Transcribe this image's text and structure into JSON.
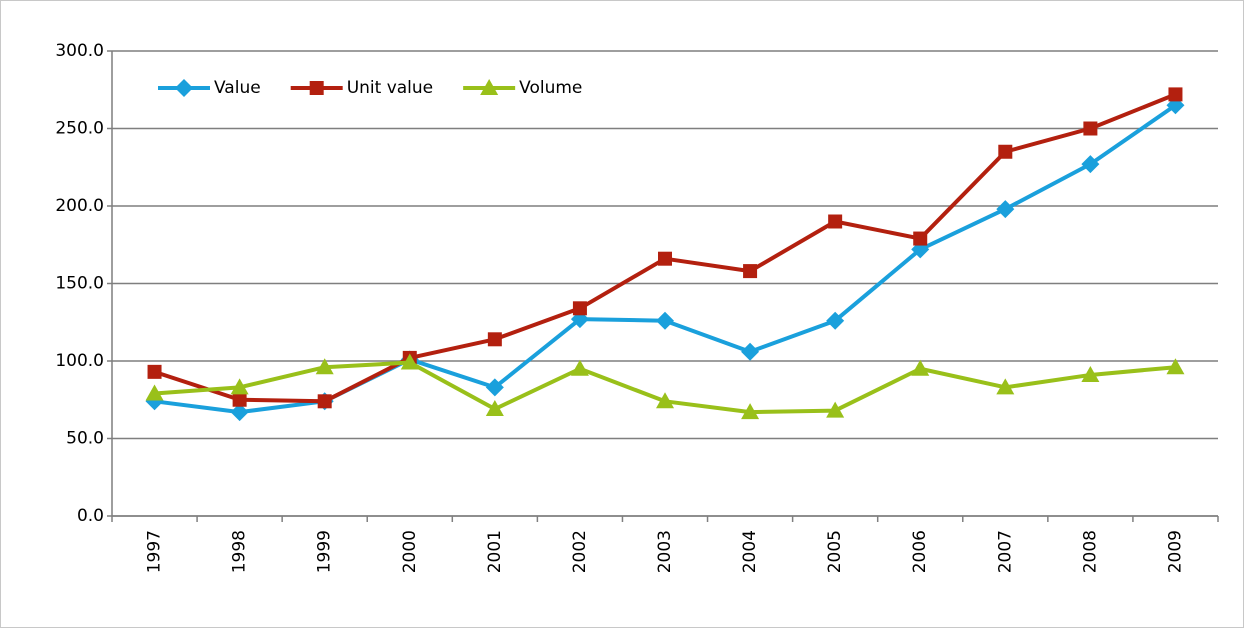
{
  "chart_data": {
    "type": "line",
    "categories": [
      "1997",
      "1998",
      "1999",
      "2000",
      "2001",
      "2002",
      "2003",
      "2004",
      "2005",
      "2006",
      "2007",
      "2008",
      "2009"
    ],
    "series": [
      {
        "name": "Value",
        "color": "#1aa0dc",
        "marker": "diamond",
        "values": [
          74,
          67,
          74,
          101,
          83,
          127,
          126,
          106,
          126,
          172,
          198,
          227,
          265
        ]
      },
      {
        "name": "Unit value",
        "color": "#b3200f",
        "marker": "square",
        "values": [
          93,
          75,
          74,
          102,
          114,
          134,
          166,
          158,
          190,
          179,
          235,
          250,
          272
        ]
      },
      {
        "name": "Volume",
        "color": "#99c01a",
        "marker": "triangle",
        "values": [
          79,
          83,
          96,
          99,
          69,
          95,
          74,
          67,
          68,
          95,
          83,
          91,
          96
        ]
      }
    ],
    "ylim": [
      0,
      300
    ],
    "yticks": [
      {
        "value": 0,
        "label": "0.0"
      },
      {
        "value": 50,
        "label": "50.0"
      },
      {
        "value": 100,
        "label": "100.0"
      },
      {
        "value": 150,
        "label": "150.0"
      },
      {
        "value": 200,
        "label": "200.0"
      },
      {
        "value": 250,
        "label": "250.0"
      },
      {
        "value": 300,
        "label": "300.0"
      }
    ],
    "grid": true,
    "legend": "top-left"
  }
}
